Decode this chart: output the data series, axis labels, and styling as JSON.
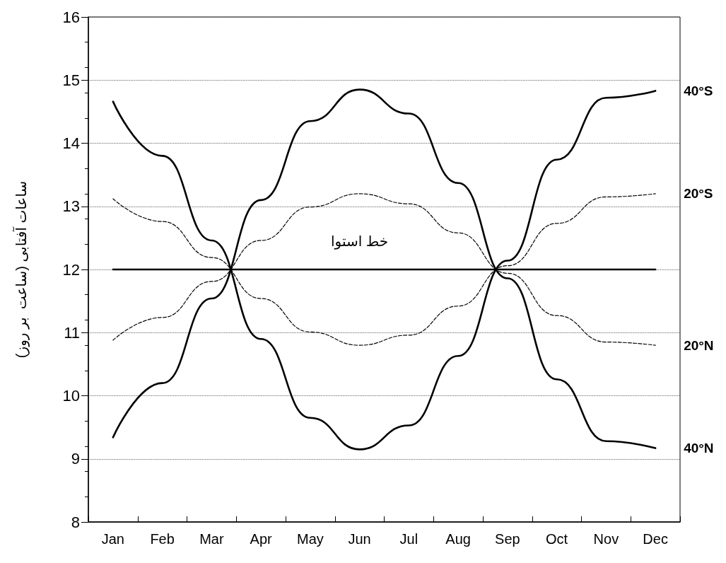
{
  "chart_data": {
    "type": "line",
    "ylabel": "ساعات آفتابی (ساعت  بر روز)",
    "categories": [
      "Jan",
      "Feb",
      "Mar",
      "Apr",
      "May",
      "Jun",
      "Jul",
      "Aug",
      "Sep",
      "Oct",
      "Nov",
      "Dec"
    ],
    "ylim": [
      8,
      16
    ],
    "yticks": [
      8,
      9,
      10,
      11,
      12,
      13,
      14,
      15,
      16
    ],
    "grid": "y",
    "marker": "none",
    "legend": false,
    "series": [
      {
        "name": "40°S",
        "color": "#000000",
        "line_style": "solid",
        "values": [
          14.66,
          13.8,
          12.46,
          10.9,
          9.65,
          9.15,
          9.53,
          10.63,
          12.14,
          13.74,
          14.72,
          14.83
        ]
      },
      {
        "name": "20°S",
        "color": "#000000",
        "line_style": "dashed",
        "values": [
          13.12,
          12.76,
          12.19,
          11.54,
          11.01,
          10.8,
          10.96,
          11.42,
          12.06,
          12.73,
          13.15,
          13.2
        ]
      },
      {
        "color": "#000000",
        "line_style": "solid",
        "values": [
          12,
          12,
          12,
          12,
          12,
          12,
          12,
          12,
          12,
          12,
          12,
          12
        ]
      },
      {
        "name": "20°N",
        "color": "#000000",
        "line_style": "dashed",
        "values": [
          10.88,
          11.24,
          11.81,
          12.46,
          12.99,
          13.2,
          13.04,
          12.58,
          11.94,
          11.27,
          10.85,
          10.8
        ]
      },
      {
        "name": "40°N",
        "color": "#000000",
        "line_style": "solid",
        "values": [
          9.34,
          10.2,
          11.54,
          13.1,
          14.35,
          14.85,
          14.47,
          13.37,
          11.86,
          10.26,
          9.28,
          9.17
        ]
      }
    ],
    "annotations": [
      {
        "text": "خط استوا",
        "x": "Jun",
        "y": 12
      }
    ]
  }
}
